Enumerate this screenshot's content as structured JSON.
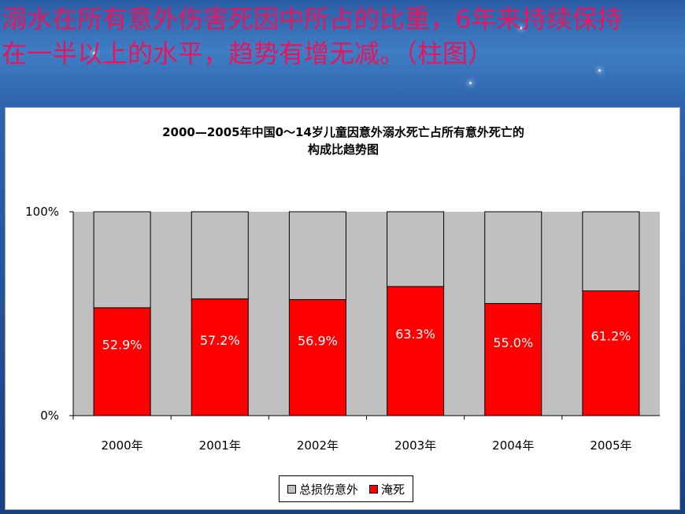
{
  "slide": {
    "heading": "溺水在所有意外伤害死因中所占的比重，6年来持续保持在一半以上的水平，趋势有增无减。（柱图）"
  },
  "colors": {
    "heading_text": "#e8155e",
    "series_other": "#c0c0c0",
    "series_drowning": "#ff0000",
    "plot_background": "#c0c0c0"
  },
  "chart_data": {
    "type": "bar",
    "stacked": "percent",
    "title": [
      "2000—2005年中国0～14岁儿童因意外溺水死亡占所有意外死亡的",
      "构成比趋势图"
    ],
    "categories": [
      "2000年",
      "2001年",
      "2002年",
      "2003年",
      "2004年",
      "2005年"
    ],
    "series": [
      {
        "name": "淹死",
        "values": [
          52.9,
          57.2,
          56.9,
          63.3,
          55.0,
          61.2
        ],
        "color": "#ff0000"
      },
      {
        "name": "总损伤意外",
        "values": [
          47.1,
          42.8,
          43.1,
          36.7,
          45.0,
          38.8
        ],
        "color": "#c0c0c0"
      }
    ],
    "data_labels": [
      "52.9%",
      "57.2%",
      "56.9%",
      "63.3%",
      "55.0%",
      "61.2%"
    ],
    "yticks": [
      "0%",
      "100%"
    ],
    "ylim": [
      0,
      100
    ],
    "legend": {
      "position": "bottom",
      "entries": [
        "总损伤意外",
        "淹死"
      ]
    }
  }
}
